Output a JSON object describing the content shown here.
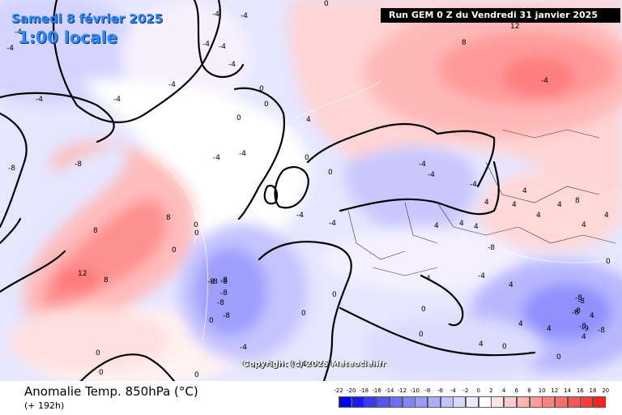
{
  "header": {
    "date": "Samedi 8 février 2025",
    "local_time": "1:00 locale",
    "run_info": "Run GEM 0 Z du Vendredi 31 janvier 2025",
    "copyright": "Copyright (c) 2025 Meteociel.fr"
  },
  "footer": {
    "variable": "Anomalie Temp. 850hPa (°C)",
    "lead_time": "(+ 192h)"
  },
  "colors": {
    "accent_title": "#2f8cff",
    "neutral": "#ffffff",
    "coast": "#000000"
  },
  "legend": {
    "labels": [
      "-22",
      "-20",
      "-18",
      "-16",
      "-14",
      "-12",
      "-10",
      "-8",
      "-6",
      "-4",
      "-2",
      "0",
      "2",
      "4",
      "6",
      "8",
      "10",
      "12",
      "14",
      "16",
      "18",
      "20"
    ],
    "colors": [
      "#0000f0",
      "#1a1aff",
      "#3a3aff",
      "#5555ff",
      "#6f6fff",
      "#8585ff",
      "#9a9aff",
      "#aeaeff",
      "#c4c4ff",
      "#d8d8ff",
      "#ebebff",
      "#ffffff",
      "#ffe4e4",
      "#ffcccc",
      "#ffb4b4",
      "#ff9c9c",
      "#ff8484",
      "#ff6c6c",
      "#ff5454",
      "#ff3c3c",
      "#ff2020"
    ]
  },
  "map_labels": {
    "items": [
      "-4",
      "-4",
      "0",
      "-4",
      "-4",
      "-4",
      "-4",
      "-4",
      "-4",
      "-4",
      "-4",
      "-4",
      "-4",
      "-4",
      "0",
      "0",
      "0",
      "0",
      "0",
      "0",
      "0",
      "0",
      "0",
      "0",
      "0",
      "0",
      "0",
      "0",
      "-8",
      "-8",
      "-8",
      "-8",
      "-8",
      "-8",
      "-8",
      "-8",
      "-8",
      "-8",
      "-8",
      "4",
      "4",
      "4",
      "4",
      "4",
      "4",
      "4",
      "4",
      "4",
      "4",
      "8",
      "8",
      "8",
      "8",
      "8",
      "12",
      "12",
      "-4",
      "-4",
      "-4",
      "-4",
      "-4",
      "-4",
      "-4",
      "-4",
      "0",
      "0",
      "0",
      "0",
      "0",
      "4",
      "4",
      "4",
      "4",
      "4",
      "4",
      "4",
      "4",
      "-8",
      "-8",
      "-8",
      "-8",
      "-8",
      "-9"
    ]
  }
}
